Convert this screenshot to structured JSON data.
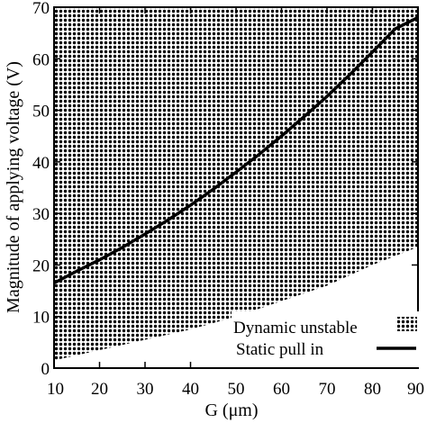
{
  "chart_data": {
    "type": "area",
    "xlabel": "G (μm)",
    "ylabel": "Magnitude of applying voltage (V)",
    "xlim": [
      10,
      90
    ],
    "ylim": [
      0,
      70
    ],
    "x_ticks": [
      10,
      20,
      30,
      40,
      50,
      60,
      70,
      80,
      90
    ],
    "y_ticks": [
      0,
      10,
      20,
      30,
      40,
      50,
      60,
      70
    ],
    "x_tick_labels": [
      "10",
      "20",
      "30",
      "40",
      "50",
      "60",
      "70",
      "80",
      "90"
    ],
    "y_tick_labels": [
      "0",
      "10",
      "20",
      "30",
      "40",
      "50",
      "60",
      "70"
    ],
    "legend_position": "bottom-right",
    "series": [
      {
        "name": "Static pull in",
        "style": "solid-line",
        "color": "#000000",
        "x": [
          10,
          15,
          20,
          25,
          30,
          35,
          40,
          45,
          50,
          55,
          60,
          65,
          70,
          75,
          80,
          85,
          90
        ],
        "y": [
          16.5,
          18.8,
          21.0,
          23.4,
          26.0,
          28.7,
          31.6,
          34.7,
          38.0,
          41.4,
          45.0,
          48.8,
          52.7,
          56.9,
          61.3,
          65.8,
          68.0
        ]
      },
      {
        "name": "Dynamic unstable",
        "style": "dotted-region",
        "color": "#000000",
        "x": [
          10,
          20,
          30,
          40,
          50,
          60,
          70,
          80,
          90
        ],
        "y_lower": [
          1.5,
          3.5,
          5.5,
          7.5,
          10.0,
          13.0,
          16.0,
          20.0,
          23.5
        ],
        "y_upper": [
          70,
          70,
          70,
          70,
          70,
          70,
          70,
          70,
          70
        ]
      }
    ]
  }
}
